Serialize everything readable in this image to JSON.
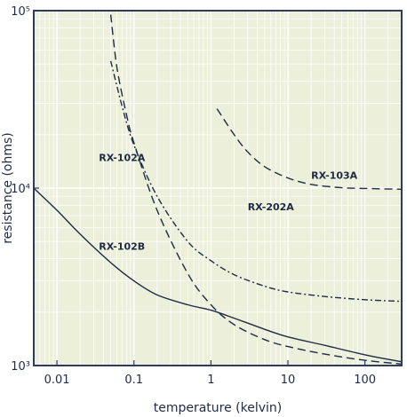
{
  "chart_data": {
    "type": "line",
    "xlabel": "temperature (kelvin)",
    "ylabel": "resistance (ohms)",
    "xscale": "log",
    "yscale": "log",
    "xlim": [
      0.005,
      300
    ],
    "ylim": [
      1000,
      100000
    ],
    "x_ticks": [
      0.01,
      0.1,
      1,
      10,
      100
    ],
    "x_tick_labels": [
      "0.01",
      "0.1",
      "1",
      "10",
      "100"
    ],
    "y_ticks": [
      1000,
      10000,
      100000
    ],
    "y_tick_labels": [
      "10³",
      "10⁴",
      "10⁵"
    ],
    "grid": true,
    "colors": {
      "plot_background": "#ecefd9",
      "grid": "#ffffff",
      "frame": "#2e3b5e",
      "series": "#1f2a44",
      "text": "#1f2a44"
    },
    "series": [
      {
        "name": "RX-102A",
        "style": "dashed",
        "label_at": [
          0.035,
          14200
        ],
        "x": [
          0.05,
          0.06,
          0.08,
          0.1,
          0.2,
          0.5,
          1,
          2,
          5,
          10,
          30,
          100,
          300
        ],
        "y": [
          95000,
          48000,
          26000,
          18000,
          7500,
          3300,
          2200,
          1700,
          1400,
          1280,
          1160,
          1070,
          1020
        ]
      },
      {
        "name": "RX-202A",
        "style": "dash-dot",
        "label_at": [
          3,
          7500
        ],
        "x": [
          0.05,
          0.07,
          0.1,
          0.2,
          0.5,
          1,
          2,
          5,
          10,
          30,
          100,
          300
        ],
        "y": [
          52000,
          29000,
          17500,
          9000,
          5000,
          3900,
          3250,
          2800,
          2600,
          2450,
          2350,
          2300
        ]
      },
      {
        "name": "RX-103A",
        "style": "dashed",
        "label_at": [
          20,
          11300
        ],
        "x": [
          1.2,
          2,
          3,
          5,
          10,
          20,
          50,
          100,
          300
        ],
        "y": [
          28000,
          20000,
          16000,
          13200,
          11400,
          10500,
          10050,
          9950,
          9850
        ]
      },
      {
        "name": "RX-102B",
        "style": "solid",
        "label_at": [
          0.035,
          4500
        ],
        "x": [
          0.005,
          0.01,
          0.02,
          0.05,
          0.1,
          0.2,
          0.5,
          1,
          2,
          5,
          10,
          30,
          100,
          300
        ],
        "y": [
          10000,
          7500,
          5500,
          3800,
          3000,
          2500,
          2200,
          2050,
          1850,
          1600,
          1450,
          1300,
          1150,
          1050
        ]
      }
    ]
  }
}
